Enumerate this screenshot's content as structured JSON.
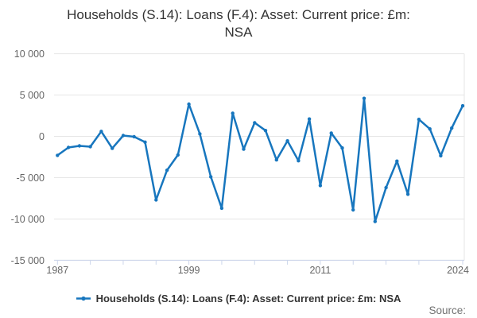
{
  "title": {
    "line1": "Households (S.14): Loans (F.4): Asset: Current price: £m:",
    "line2": "NSA"
  },
  "legend": {
    "label": "Households (S.14): Loans (F.4): Asset: Current price: £m: NSA"
  },
  "source": {
    "label": "Source:"
  },
  "colors": {
    "series": "#1776be",
    "grid": "#e6e6e6",
    "axis": "#ccd6eb",
    "tick_label": "#666666",
    "title_text": "#333333",
    "source_text": "#707070"
  },
  "chart_data": {
    "type": "line",
    "title": "Households (S.14): Loans (F.4): Asset: Current price: £m: NSA",
    "xlabel": "",
    "ylabel": "",
    "xlim": [
      1987,
      2024
    ],
    "ylim": [
      -15000,
      10000
    ],
    "grid": true,
    "legend_position": "bottom",
    "x": [
      1987,
      1988,
      1989,
      1990,
      1991,
      1992,
      1993,
      1994,
      1995,
      1996,
      1997,
      1998,
      1999,
      2000,
      2001,
      2002,
      2003,
      2004,
      2005,
      2006,
      2007,
      2008,
      2009,
      2010,
      2011,
      2012,
      2013,
      2014,
      2015,
      2016,
      2017,
      2018,
      2019,
      2020,
      2021,
      2022,
      2023,
      2024
    ],
    "series": [
      {
        "name": "Households (S.14): Loans (F.4): Asset: Current price: £m: NSA",
        "values": [
          -2300,
          -1350,
          -1150,
          -1250,
          600,
          -1450,
          100,
          -50,
          -700,
          -7700,
          -4100,
          -2250,
          3900,
          300,
          -4900,
          -8700,
          2800,
          -1550,
          1650,
          700,
          -2850,
          -550,
          -2950,
          2100,
          -5950,
          400,
          -1400,
          -8900,
          4600,
          -10300,
          -6200,
          -3000,
          -7000,
          2050,
          900,
          -2350,
          1000,
          3700
        ]
      }
    ],
    "y_ticks": [
      {
        "value": 10000,
        "label": "10 000"
      },
      {
        "value": 5000,
        "label": "5 000"
      },
      {
        "value": 0,
        "label": "0"
      },
      {
        "value": -5000,
        "label": "-5 000"
      },
      {
        "value": -10000,
        "label": "-10 000"
      },
      {
        "value": -15000,
        "label": "-15 000"
      }
    ],
    "x_minor_tick_years": [
      1987,
      1990,
      1993,
      1996,
      1999,
      2002,
      2005,
      2008,
      2011,
      2014,
      2017,
      2020,
      2024
    ],
    "x_tick_labels": [
      {
        "year": 1987,
        "label": "1987"
      },
      {
        "year": 1999,
        "label": "1999"
      },
      {
        "year": 2011,
        "label": "2011"
      },
      {
        "year": 2024,
        "label": "2024"
      }
    ]
  }
}
